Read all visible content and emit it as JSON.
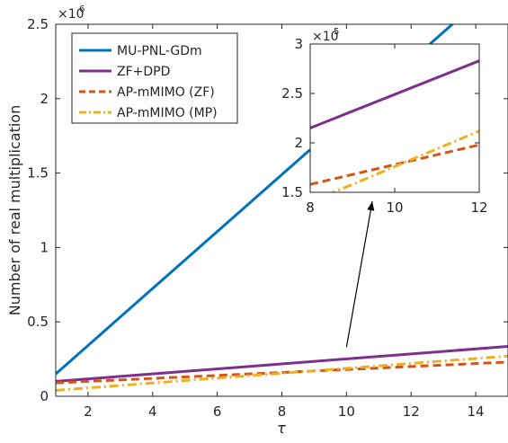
{
  "chart_data": [
    {
      "type": "line",
      "xlabel": "τ",
      "ylabel": "Number of real multiplication",
      "exponent_base": "×10",
      "exponent_power": "6",
      "xlim": [
        1,
        15
      ],
      "ylim": [
        0,
        2500000
      ],
      "xticks": [
        2,
        4,
        6,
        8,
        10,
        12,
        14
      ],
      "xtick_labels": [
        "2",
        "4",
        "6",
        "8",
        "10",
        "12",
        "14"
      ],
      "yticks": [
        0,
        500000,
        1000000,
        1500000,
        2000000,
        2500000
      ],
      "ytick_labels": [
        "0",
        "0.5",
        "1",
        "1.5",
        "2",
        "2.5"
      ],
      "grid": false,
      "legend_position": "top-left",
      "x": [
        1,
        15
      ],
      "series": [
        {
          "name": "MU-PNL-GDm",
          "values": [
            150000,
            2830000
          ],
          "color": "#0072BD",
          "style": "solid"
        },
        {
          "name": "ZF+DPD",
          "values": [
            100000,
            335000
          ],
          "color": "#7E2F8E",
          "style": "solid"
        },
        {
          "name": "AP-mMIMO (ZF)",
          "values": [
            90000,
            230000
          ],
          "color": "#D95319",
          "style": "dashed"
        },
        {
          "name": "AP-mMIMO (MP)",
          "values": [
            40000,
            270000
          ],
          "color": "#EDB120",
          "style": "dashdot"
        }
      ],
      "annotation": {
        "type": "arrow",
        "from": [
          10,
          330000
        ],
        "to": [
          10.8,
          1310000
        ]
      }
    },
    {
      "type": "line",
      "role": "inset",
      "exponent_base": "×10",
      "exponent_power": "5",
      "xlim": [
        8,
        12
      ],
      "ylim": [
        150000,
        300000
      ],
      "xticks": [
        8,
        10,
        12
      ],
      "xtick_labels": [
        "8",
        "10",
        "12"
      ],
      "yticks": [
        150000,
        200000,
        250000,
        300000
      ],
      "ytick_labels": [
        "1.5",
        "2",
        "2.5",
        "3"
      ],
      "grid": false,
      "x": [
        8,
        12
      ],
      "series": [
        {
          "values": [
            215000,
            283000
          ],
          "color": "#7E2F8E",
          "style": "solid"
        },
        {
          "values": [
            158000,
            198000
          ],
          "color": "#D95319",
          "style": "dashed"
        },
        {
          "values": [
            140000,
            212000
          ],
          "color": "#EDB120",
          "style": "dashdot"
        }
      ]
    }
  ]
}
